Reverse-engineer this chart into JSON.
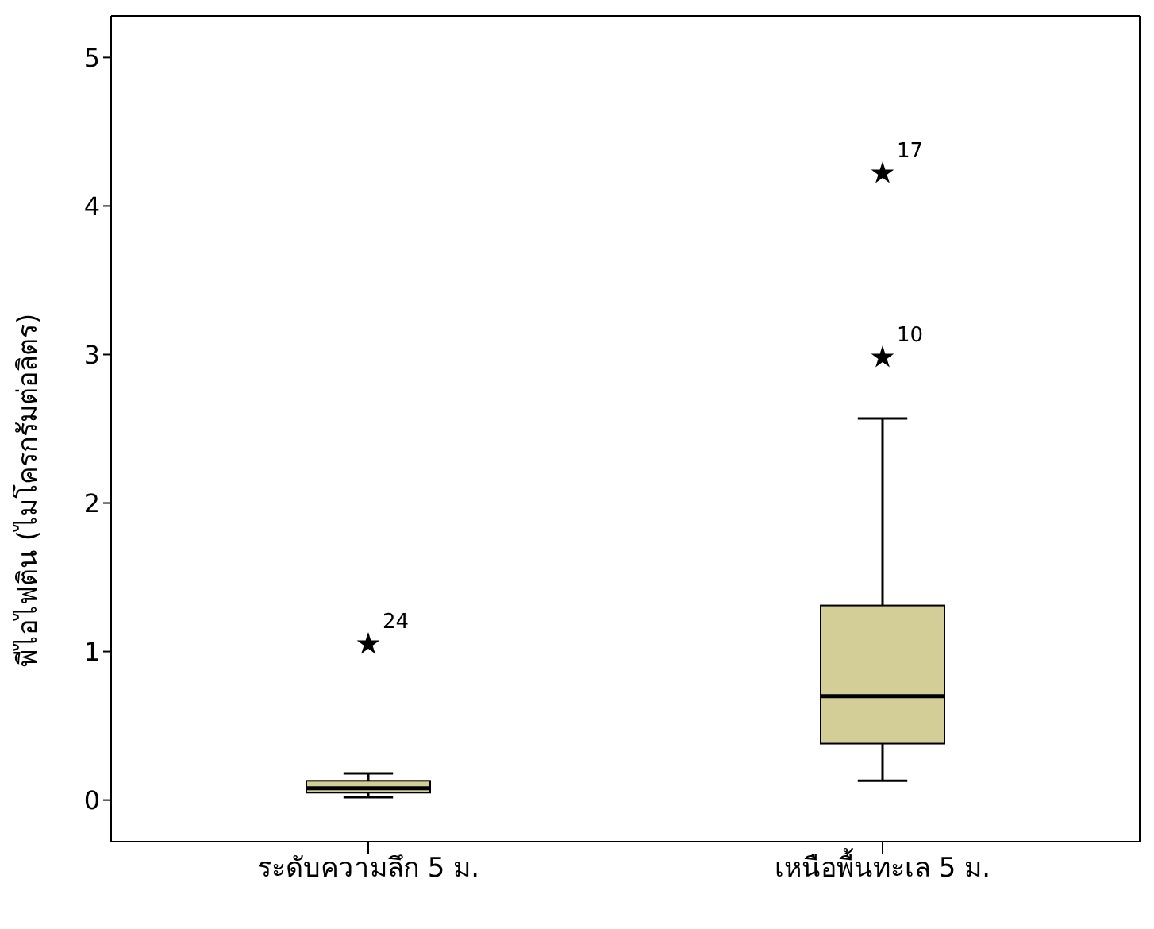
{
  "chart_data": {
    "type": "box",
    "ylabel": "พีไอไฟติน (ไมโครกรัมต่อลิตร)",
    "categories": [
      "ระดับความลึก 5 ม.",
      "เหนือพื้นทะเล 5 ม."
    ],
    "series": [
      {
        "color": "#d3cd98",
        "boxes": [
          {
            "low": 0.02,
            "q1": 0.05,
            "median": 0.08,
            "q3": 0.13,
            "high": 0.18,
            "outliers": [
              1.05
            ]
          },
          {
            "low": 0.13,
            "q1": 0.38,
            "median": 0.7,
            "q3": 1.31,
            "high": 2.57,
            "outliers": [
              2.98,
              4.22
            ]
          }
        ]
      }
    ],
    "ylim": [
      -0.28,
      5.28
    ],
    "yticks": [
      0,
      1,
      2,
      3,
      4,
      5
    ],
    "marker": "star",
    "grid": false,
    "legend": false,
    "annotations": [
      "24",
      "10",
      "17"
    ]
  }
}
